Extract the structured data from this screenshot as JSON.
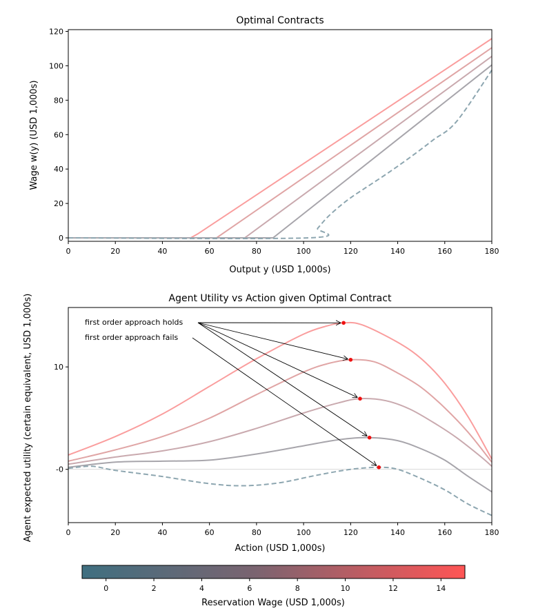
{
  "chart_data": [
    {
      "type": "line",
      "title": "Optimal Contracts",
      "xlabel": "Output y (USD 1,000s)",
      "ylabel": "Wage w(y) (USD 1,000s)",
      "xlim": [
        0,
        180
      ],
      "ylim": [
        -2,
        121
      ],
      "xticks": [
        0,
        20,
        40,
        60,
        80,
        100,
        120,
        140,
        160,
        180
      ],
      "yticks": [
        0,
        20,
        40,
        60,
        80,
        100,
        120
      ],
      "grid": false,
      "series": [
        {
          "reservation_wage": 14,
          "color": "#fa9d9d",
          "dashed": false,
          "points": [
            [
              0,
              0
            ],
            [
              52,
              0
            ],
            [
              55,
              2.3
            ],
            [
              180,
              115.8
            ]
          ]
        },
        {
          "reservation_wage": 10,
          "color": "#e0a5a5",
          "dashed": false,
          "points": [
            [
              0,
              0
            ],
            [
              63,
              0
            ],
            [
              180,
              110.5
            ]
          ]
        },
        {
          "reservation_wage": 6,
          "color": "#c9a9ae",
          "dashed": false,
          "points": [
            [
              0,
              0
            ],
            [
              75,
              0
            ],
            [
              180,
              105.5
            ]
          ]
        },
        {
          "reservation_wage": 3,
          "color": "#a7a5ab",
          "dashed": false,
          "points": [
            [
              0,
              0
            ],
            [
              87,
              0
            ],
            [
              180,
              100.5
            ]
          ]
        },
        {
          "reservation_wage": 0,
          "color": "#8da6b0",
          "dashed": true,
          "points": [
            [
              0,
              0
            ],
            [
              102,
              0
            ],
            [
              106,
              5.6
            ],
            [
              110,
              11.8
            ],
            [
              115,
              18
            ],
            [
              120,
              23.3
            ],
            [
              125,
              27.9
            ],
            [
              135,
              36.9
            ],
            [
              145,
              46.5
            ],
            [
              155,
              56.8
            ],
            [
              165,
              67.6
            ],
            [
              180,
              97.5
            ]
          ]
        }
      ]
    },
    {
      "type": "line",
      "title": "Agent Utility vs Action given Optimal Contract",
      "xlabel": "Action (USD 1,000s)",
      "ylabel": "Agent expected utility (certain equivalent, USD 1,000s)",
      "xlim": [
        0,
        180
      ],
      "ylim": [
        -5.2,
        15.8
      ],
      "xticks": [
        0,
        20,
        40,
        60,
        80,
        100,
        120,
        140,
        160,
        180
      ],
      "yticks": [
        10,
        0
      ],
      "ytick_labels": [
        "10",
        "-0"
      ],
      "reference_line_y": 0,
      "grid": false,
      "series": [
        {
          "reservation_wage": 14,
          "color": "#fa9d9d",
          "dashed": false,
          "points": [
            [
              0,
              1.4
            ],
            [
              20,
              3.2
            ],
            [
              40,
              5.4
            ],
            [
              60,
              8.1
            ],
            [
              80,
              10.8
            ],
            [
              100,
              13.2
            ],
            [
              110,
              14.0
            ],
            [
              117,
              14.3
            ],
            [
              125,
              14.1
            ],
            [
              140,
              12.4
            ],
            [
              150,
              10.8
            ],
            [
              160,
              8.4
            ],
            [
              170,
              5.1
            ],
            [
              180,
              1.0
            ]
          ],
          "optimum": {
            "action": 117,
            "utility": 14.3
          }
        },
        {
          "reservation_wage": 10,
          "color": "#e0a5a5",
          "dashed": false,
          "points": [
            [
              0,
              0.8
            ],
            [
              20,
              1.9
            ],
            [
              40,
              3.2
            ],
            [
              60,
              5.0
            ],
            [
              80,
              7.3
            ],
            [
              100,
              9.5
            ],
            [
              110,
              10.3
            ],
            [
              120,
              10.7
            ],
            [
              130,
              10.5
            ],
            [
              140,
              9.4
            ],
            [
              150,
              8.0
            ],
            [
              160,
              6.0
            ],
            [
              170,
              3.6
            ],
            [
              180,
              0.7
            ]
          ],
          "optimum": {
            "action": 120,
            "utility": 10.7
          }
        },
        {
          "reservation_wage": 6,
          "color": "#c9a9ae",
          "dashed": false,
          "points": [
            [
              0,
              0.5
            ],
            [
              20,
              1.2
            ],
            [
              40,
              1.8
            ],
            [
              60,
              2.7
            ],
            [
              80,
              4.0
            ],
            [
              100,
              5.5
            ],
            [
              115,
              6.5
            ],
            [
              124,
              6.9
            ],
            [
              135,
              6.7
            ],
            [
              145,
              5.9
            ],
            [
              155,
              4.6
            ],
            [
              165,
              3.1
            ],
            [
              175,
              1.3
            ],
            [
              180,
              0.3
            ]
          ],
          "optimum": {
            "action": 124,
            "utility": 6.9
          }
        },
        {
          "reservation_wage": 3,
          "color": "#a7a5ab",
          "dashed": false,
          "points": [
            [
              0,
              0.2
            ],
            [
              20,
              0.7
            ],
            [
              40,
              0.8
            ],
            [
              60,
              0.9
            ],
            [
              80,
              1.5
            ],
            [
              100,
              2.3
            ],
            [
              115,
              2.9
            ],
            [
              128,
              3.1
            ],
            [
              140,
              2.8
            ],
            [
              150,
              2.0
            ],
            [
              160,
              0.9
            ],
            [
              170,
              -0.7
            ],
            [
              180,
              -2.2
            ]
          ],
          "optimum": {
            "action": 128,
            "utility": 3.1
          }
        },
        {
          "reservation_wage": 0,
          "color": "#8da6b0",
          "dashed": true,
          "points": [
            [
              0,
              0.1
            ],
            [
              10,
              0.3
            ],
            [
              20,
              -0.1
            ],
            [
              40,
              -0.7
            ],
            [
              60,
              -1.4
            ],
            [
              75,
              -1.6
            ],
            [
              90,
              -1.3
            ],
            [
              105,
              -0.6
            ],
            [
              120,
              0.0
            ],
            [
              132,
              0.2
            ],
            [
              140,
              0.0
            ],
            [
              150,
              -0.9
            ],
            [
              160,
              -2.0
            ],
            [
              170,
              -3.4
            ],
            [
              180,
              -4.5
            ]
          ],
          "optimum": {
            "action": 132,
            "utility": 0.2
          }
        }
      ],
      "annotations": [
        {
          "text": "first order approach holds",
          "targets": [
            0,
            1,
            2,
            3
          ]
        },
        {
          "text": "first order approach fails",
          "targets": [
            4
          ]
        }
      ]
    },
    {
      "type": "colorbar",
      "label": "Reservation Wage (USD 1,000s)",
      "range": [
        -1,
        15
      ],
      "ticks": [
        0,
        2,
        4,
        6,
        8,
        10,
        12,
        14
      ],
      "color_low": "#3f6f80",
      "color_high": "#ff5555"
    }
  ]
}
